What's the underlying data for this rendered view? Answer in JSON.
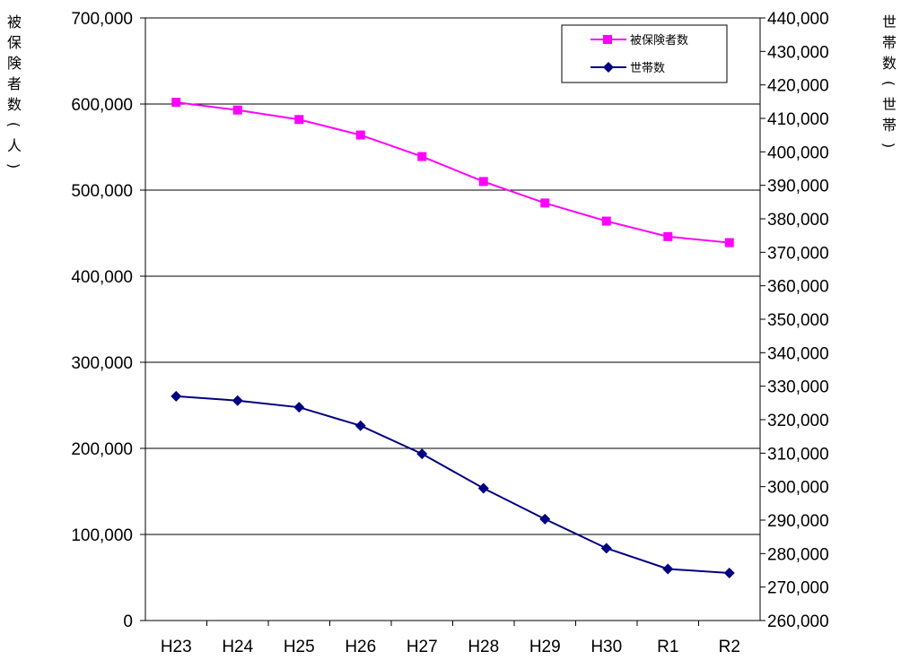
{
  "chart_data": {
    "type": "line",
    "categories": [
      "H23",
      "H24",
      "H25",
      "H26",
      "H27",
      "H28",
      "H29",
      "H30",
      "R1",
      "R2"
    ],
    "series": [
      {
        "name": "被保険者数",
        "axis": "left",
        "color": "#ff00ff",
        "marker": "square",
        "values": [
          602000,
          593000,
          582000,
          564000,
          539000,
          510000,
          485000,
          464000,
          446000,
          439000
        ]
      },
      {
        "name": "世帯数",
        "axis": "right",
        "color": "#000080",
        "marker": "diamond",
        "values": [
          327000,
          325700,
          323700,
          318200,
          309800,
          299500,
          290300,
          281600,
          275400,
          274200
        ]
      }
    ],
    "left_axis": {
      "label": "被保険者数(人)",
      "ylim": [
        0,
        700000
      ],
      "ticks": [
        "0",
        "100,000",
        "200,000",
        "300,000",
        "400,000",
        "500,000",
        "600,000",
        "700,000"
      ]
    },
    "right_axis": {
      "label": "世帯数(世帯)",
      "ylim": [
        260000,
        440000
      ],
      "ticks": [
        "260,000",
        "270,000",
        "280,000",
        "290,000",
        "300,000",
        "310,000",
        "320,000",
        "330,000",
        "340,000",
        "350,000",
        "360,000",
        "370,000",
        "380,000",
        "390,000",
        "400,000",
        "410,000",
        "420,000",
        "430,000",
        "440,000"
      ]
    },
    "grid": true,
    "legend_position": "top-right"
  }
}
